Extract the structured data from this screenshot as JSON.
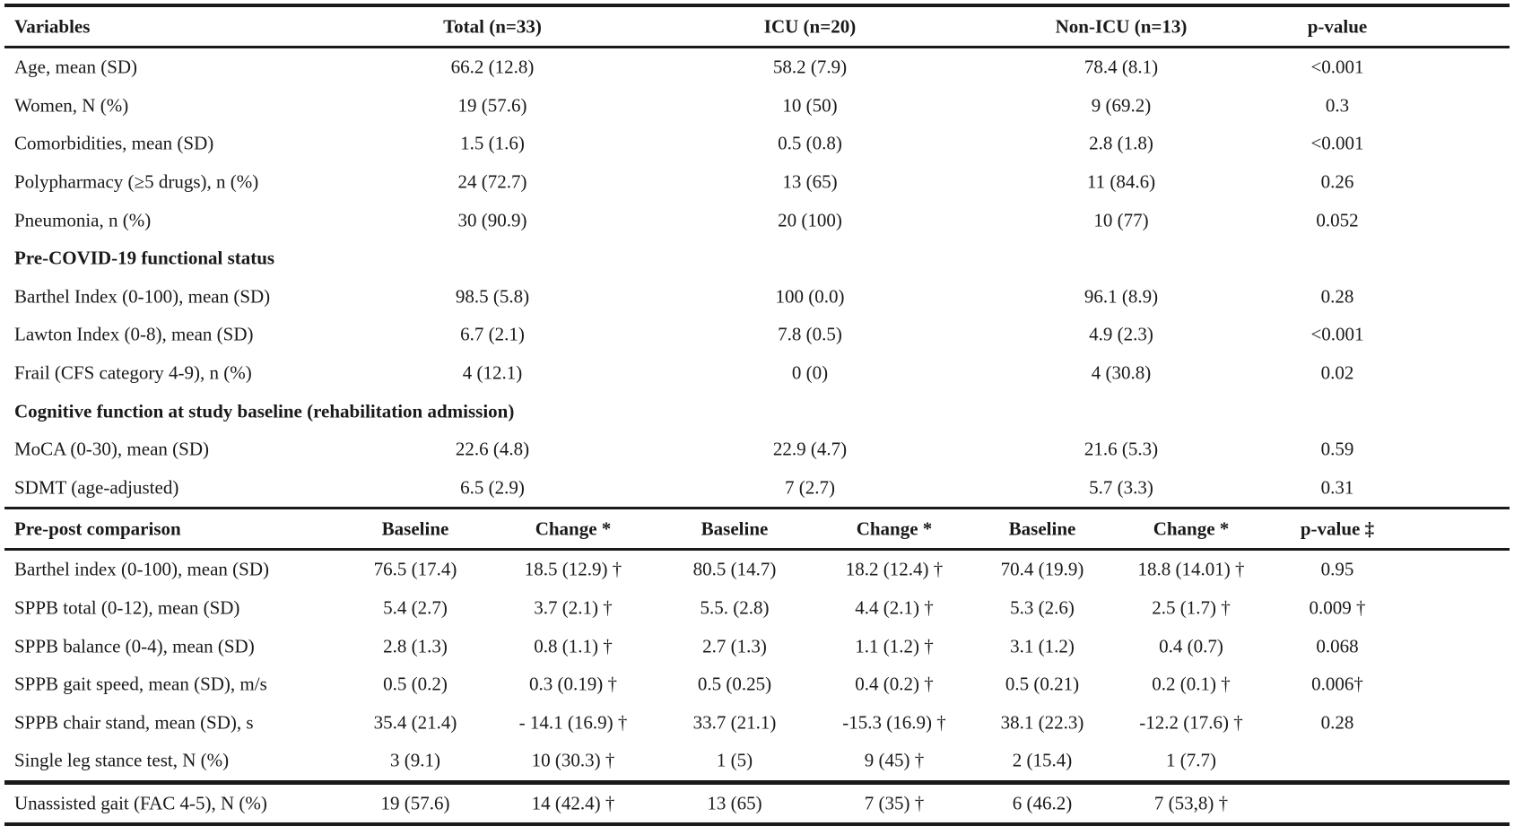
{
  "top_header": {
    "variables": "Variables",
    "total": "Total (n=33)",
    "icu": "ICU (n=20)",
    "non_icu": "Non-ICU (n=13)",
    "pvalue": "p-value"
  },
  "demographics": [
    {
      "label": "Age, mean (SD)",
      "total": "66.2 (12.8)",
      "icu": "58.2 (7.9)",
      "non_icu": "78.4 (8.1)",
      "p": "<0.001"
    },
    {
      "label": "Women, N (%)",
      "total": "19 (57.6)",
      "icu": "10 (50)",
      "non_icu": "9 (69.2)",
      "p": "0.3"
    },
    {
      "label": "Comorbidities, mean (SD)",
      "total": "1.5 (1.6)",
      "icu": "0.5 (0.8)",
      "non_icu": "2.8 (1.8)",
      "p": "<0.001"
    },
    {
      "label": "Polypharmacy (≥5 drugs), n (%)",
      "total": "24 (72.7)",
      "icu": "13 (65)",
      "non_icu": "11 (84.6)",
      "p": "0.26"
    },
    {
      "label": "Pneumonia, n (%)",
      "total": "30 (90.9)",
      "icu": "20 (100)",
      "non_icu": "10 (77)",
      "p": "0.052"
    }
  ],
  "section_functional": "Pre-COVID-19 functional status",
  "functional": [
    {
      "label": "Barthel Index (0-100), mean (SD)",
      "total": "98.5 (5.8)",
      "icu": "100 (0.0)",
      "non_icu": "96.1 (8.9)",
      "p": "0.28"
    },
    {
      "label": "Lawton Index (0-8), mean (SD)",
      "total": "6.7 (2.1)",
      "icu": "7.8 (0.5)",
      "non_icu": "4.9 (2.3)",
      "p": "<0.001"
    },
    {
      "label": "Frail (CFS category 4-9), n (%)",
      "total": "4 (12.1)",
      "icu": "0 (0)",
      "non_icu": "4 (30.8)",
      "p": "0.02"
    }
  ],
  "section_cognitive": "Cognitive function at study baseline (rehabilitation admission)",
  "cognitive": [
    {
      "label": "MoCA (0-30), mean (SD)",
      "total": "22.6 (4.8)",
      "icu": "22.9 (4.7)",
      "non_icu": "21.6 (5.3)",
      "p": "0.59"
    },
    {
      "label": "SDMT (age-adjusted)",
      "total": "6.5 (2.9)",
      "icu": "7 (2.7)",
      "non_icu": "5.7 (3.3)",
      "p": "0.31"
    }
  ],
  "prepost_header": {
    "label": "Pre-post comparison",
    "total_baseline": "Baseline",
    "total_change": "Change *",
    "icu_baseline": "Baseline",
    "icu_change": "Change *",
    "non_icu_baseline": "Baseline",
    "non_icu_change": "Change *",
    "pvalue": "p-value ‡"
  },
  "prepost": [
    {
      "label": "Barthel index (0-100), mean (SD)",
      "tb": "76.5 (17.4)",
      "tc": "18.5 (12.9) †",
      "ib": "80.5 (14.7)",
      "ic": "18.2 (12.4) †",
      "nb": "70.4 (19.9)",
      "nc": "18.8 (14.01) †",
      "p": "0.95"
    },
    {
      "label": "SPPB total (0-12), mean (SD)",
      "tb": "5.4 (2.7)",
      "tc": "3.7 (2.1) †",
      "ib": "5.5. (2.8)",
      "ic": "4.4 (2.1) †",
      "nb": "5.3 (2.6)",
      "nc": "2.5 (1.7) †",
      "p": "0.009 †"
    },
    {
      "label": "SPPB balance (0-4), mean (SD)",
      "tb": "2.8 (1.3)",
      "tc": "0.8 (1.1) †",
      "ib": "2.7 (1.3)",
      "ic": "1.1 (1.2) †",
      "nb": "3.1 (1.2)",
      "nc": "0.4 (0.7)",
      "p": "0.068"
    },
    {
      "label": "SPPB gait speed, mean (SD), m/s",
      "tb": "0.5 (0.2)",
      "tc": "0.3 (0.19) †",
      "ib": "0.5 (0.25)",
      "ic": "0.4 (0.2) †",
      "nb": "0.5 (0.21)",
      "nc": "0.2 (0.1) †",
      "p": "0.006†"
    },
    {
      "label": "SPPB chair stand, mean (SD), s",
      "tb": "35.4 (21.4)",
      "tc": "- 14.1 (16.9) †",
      "ib": "33.7 (21.1)",
      "ic": "-15.3 (16.9) †",
      "nb": "38.1 (22.3)",
      "nc": "-12.2 (17.6) †",
      "p": "0.28"
    },
    {
      "label": "Single leg stance test, N (%)",
      "tb": "3 (9.1)",
      "tc": "10 (30.3) †",
      "ib": "1 (5)",
      "ic": "9 (45) †",
      "nb": "2 (15.4)",
      "nc": "1 (7.7)",
      "p": ""
    }
  ],
  "final_row": {
    "label": "Unassisted gait (FAC 4-5), N (%)",
    "tb": "19 (57.6)",
    "tc": "14 (42.4) †",
    "ib": "13 (65)",
    "ic": "7 (35) †",
    "nb": "6 (46.2)",
    "nc": "7 (53,8) †",
    "p": ""
  }
}
